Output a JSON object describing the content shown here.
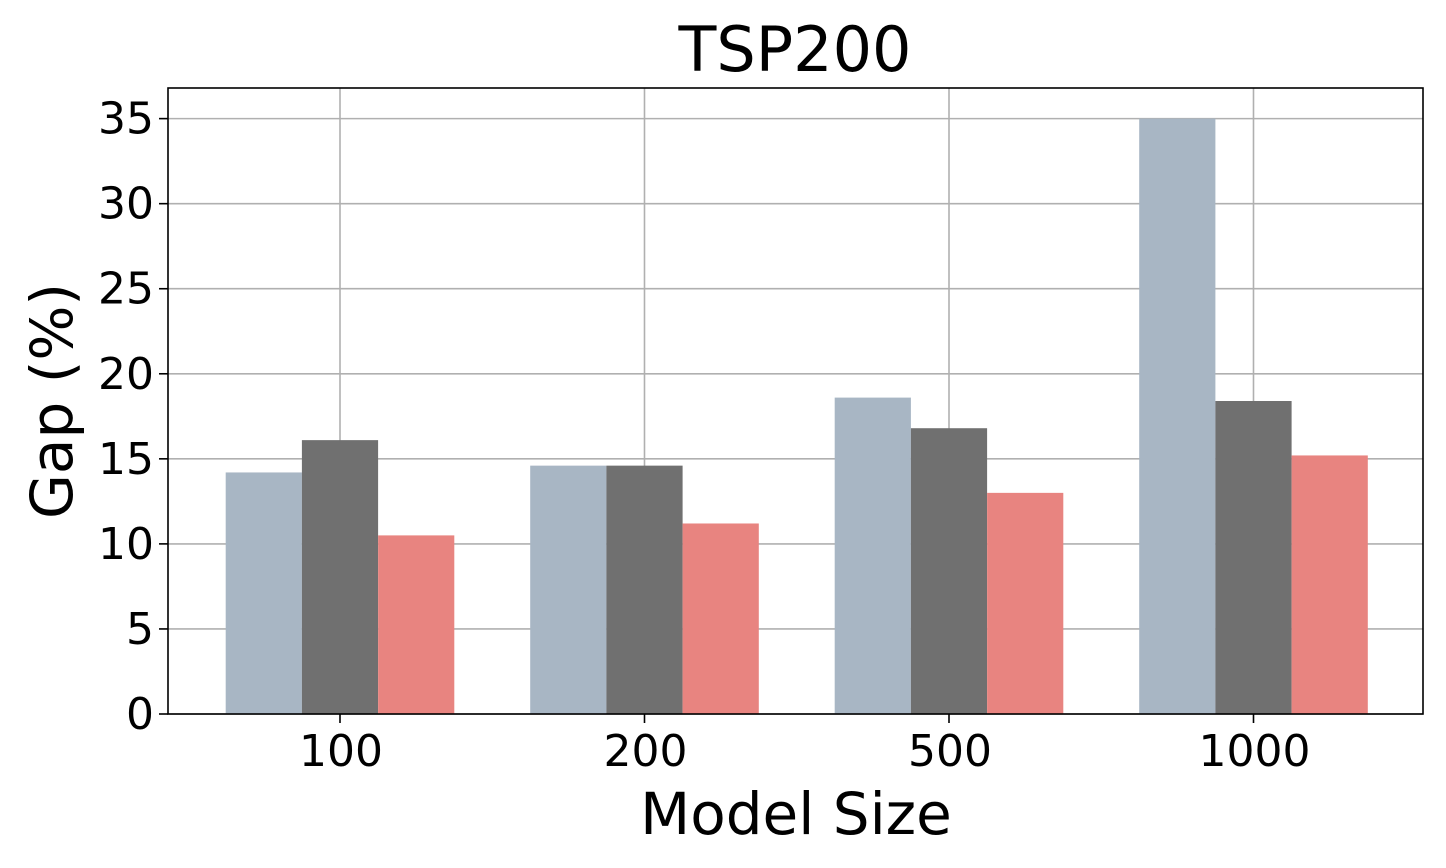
{
  "chart_data": {
    "type": "bar",
    "title": "TSP200",
    "xlabel": "Model Size",
    "ylabel": "Gap (%)",
    "categories": [
      "100",
      "200",
      "500",
      "1000"
    ],
    "ylim": [
      0,
      36.8
    ],
    "yticks": [
      0,
      5,
      10,
      15,
      20,
      25,
      30,
      35
    ],
    "grid": true,
    "series": [
      {
        "values": [
          14.2,
          14.6,
          18.6,
          35.0
        ],
        "color": "#a8b6c4"
      },
      {
        "values": [
          16.1,
          14.6,
          16.8,
          18.4
        ],
        "color": "#707070"
      },
      {
        "values": [
          10.5,
          11.2,
          13.0,
          15.2
        ],
        "color": "#e88480"
      }
    ]
  }
}
